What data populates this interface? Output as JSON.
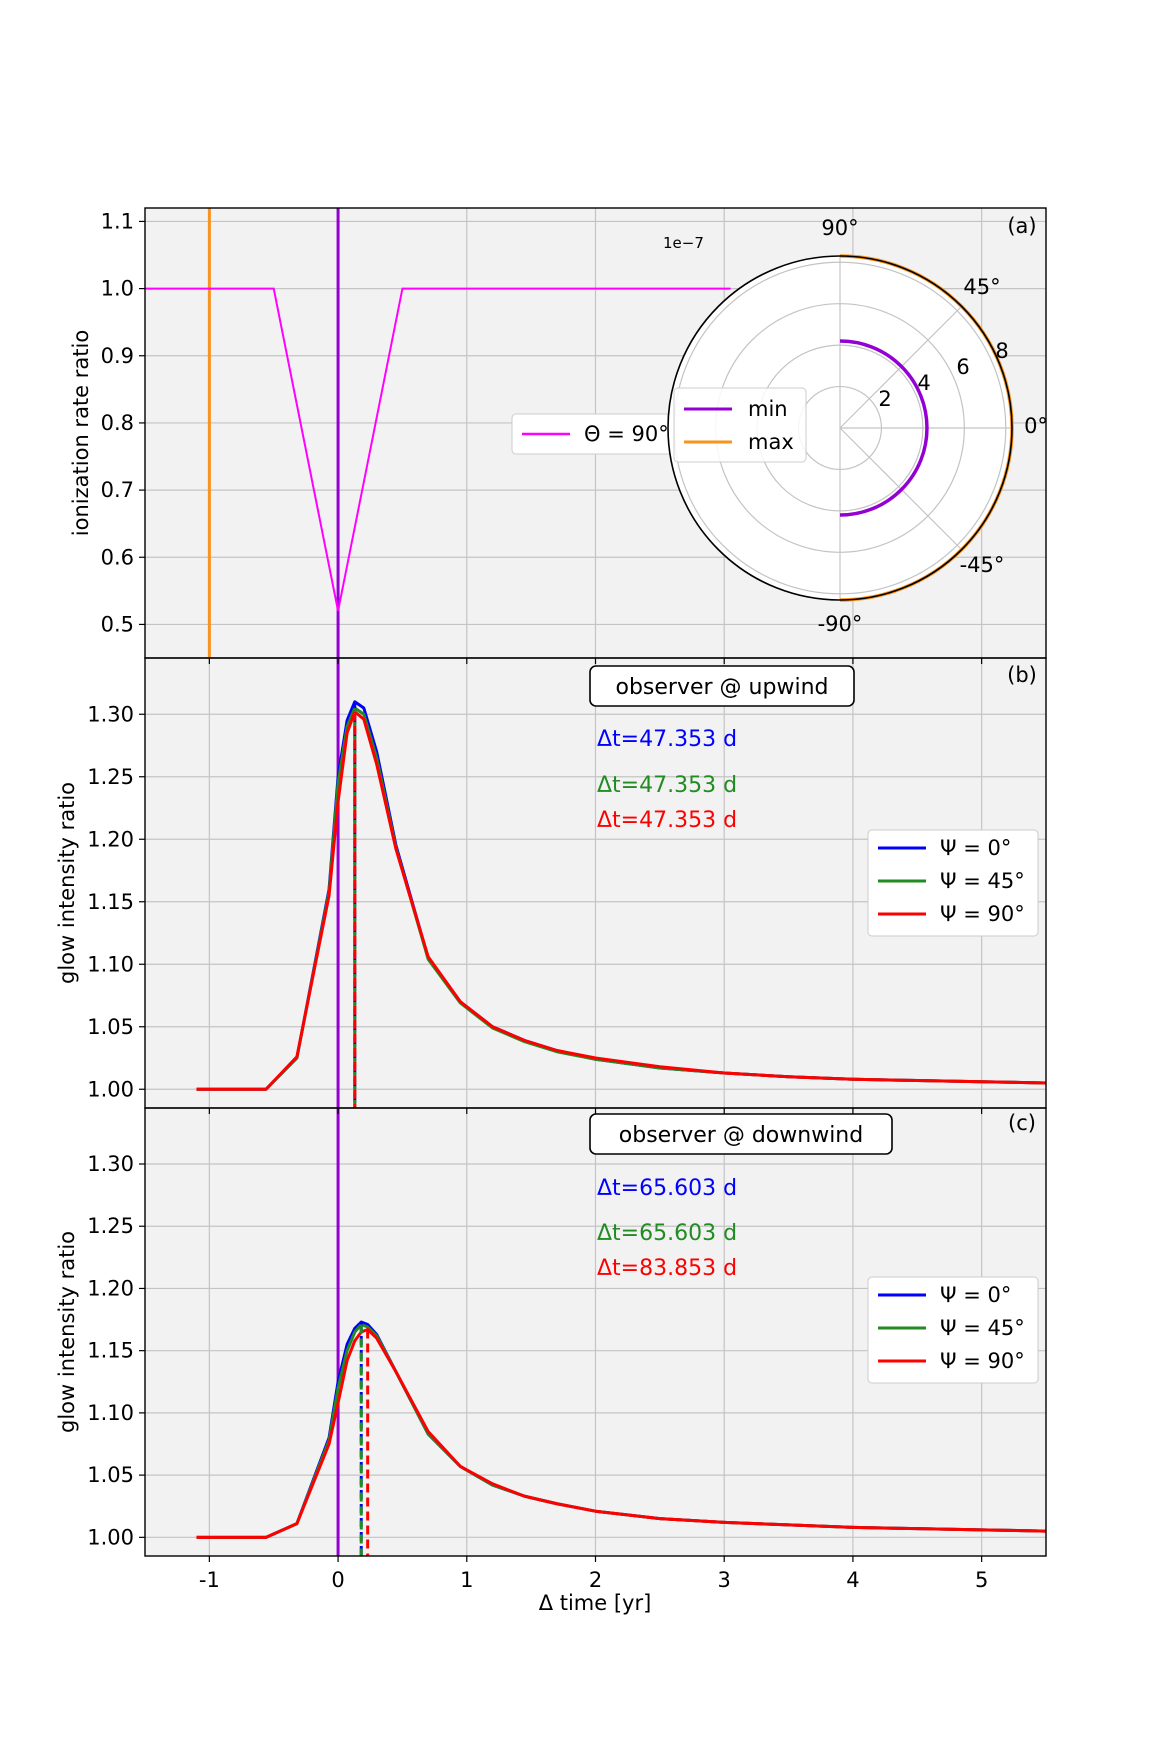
{
  "colors": {
    "panel_bg": "#f2f2f2",
    "grid": "#c4c4c4",
    "min": "#9400d3",
    "max": "#f7931e",
    "theta": "#ff00ff",
    "psi0": "#0000ff",
    "psi45": "#228b22",
    "psi90": "#ff0000"
  },
  "xaxis": {
    "label": "Δ time [yr]",
    "range": [
      -1.5,
      5.5
    ],
    "ticks": [
      -1,
      0,
      1,
      2,
      3,
      4,
      5
    ],
    "tick_labels": [
      "-1",
      "0",
      "1",
      "2",
      "3",
      "4",
      "5"
    ]
  },
  "chart_data": [
    {
      "panel": "(a)",
      "type": "line",
      "ylabel": "ionization rate ratio",
      "ylim": [
        0.45,
        1.12
      ],
      "yticks": [
        0.5,
        0.6,
        0.7,
        0.8,
        0.9,
        1.0,
        1.1
      ],
      "ytick_labels": [
        "0.5",
        "0.6",
        "0.7",
        "0.8",
        "0.9",
        "1.0",
        "1.1"
      ],
      "series": [
        {
          "name": "Θ = 90°",
          "x": [
            -1.5,
            -0.5,
            0.0,
            0.5,
            3.05
          ],
          "y": [
            1.0,
            1.0,
            0.52,
            1.0,
            1.0
          ]
        }
      ],
      "vlines": [
        {
          "name": "max",
          "x": -1.0
        },
        {
          "name": "min",
          "x": 0.0
        }
      ],
      "legend": {
        "entry": "Θ = 90°",
        "placement": "center-right"
      },
      "inset_polar": {
        "scale_label": "1e−7",
        "theta_labels": [
          "90°",
          "45°",
          "0°",
          "-45°",
          "-90°"
        ],
        "r_ticks": [
          2,
          4,
          6,
          8
        ],
        "r_tick_labels": [
          "2",
          "4",
          "6",
          "8"
        ],
        "rmax": 8.3,
        "series": [
          {
            "name": "min",
            "r": 4.2,
            "theta_range": [
              -90,
              90
            ]
          },
          {
            "name": "max",
            "r": 8.3,
            "theta_range": [
              -90,
              90
            ]
          }
        ],
        "legend": [
          "min",
          "max"
        ]
      }
    },
    {
      "panel": "(b)",
      "type": "line",
      "title_box": "observer @ upwind",
      "ylabel": "glow intensity ratio",
      "ylim": [
        0.985,
        1.345
      ],
      "yticks": [
        1.0,
        1.05,
        1.1,
        1.15,
        1.2,
        1.25,
        1.3
      ],
      "ytick_labels": [
        "1.00",
        "1.05",
        "1.10",
        "1.15",
        "1.20",
        "1.25",
        "1.30"
      ],
      "annotations": [
        "Δt=47.353 d",
        "Δt=47.353 d",
        "Δt=47.353 d"
      ],
      "x": [
        -1.1,
        -0.56,
        -0.32,
        -0.07,
        0.0,
        0.07,
        0.13,
        0.2,
        0.3,
        0.45,
        0.7,
        0.95,
        1.2,
        1.45,
        1.7,
        2.0,
        2.5,
        3.0,
        3.5,
        4.0,
        4.5,
        5.0,
        5.5
      ],
      "series": [
        {
          "name": "Ψ = 0°",
          "y": [
            1.0,
            1.0,
            1.025,
            1.16,
            1.25,
            1.295,
            1.31,
            1.305,
            1.27,
            1.195,
            1.105,
            1.07,
            1.05,
            1.039,
            1.031,
            1.024,
            1.017,
            1.013,
            1.01,
            1.008,
            1.007,
            1.006,
            1.005
          ]
        },
        {
          "name": "Ψ = 45°",
          "y": [
            1.0,
            1.0,
            1.025,
            1.158,
            1.245,
            1.29,
            1.305,
            1.3,
            1.265,
            1.193,
            1.104,
            1.069,
            1.049,
            1.038,
            1.03,
            1.024,
            1.017,
            1.013,
            1.01,
            1.008,
            1.007,
            1.006,
            1.005
          ]
        },
        {
          "name": "Ψ = 90°",
          "y": [
            1.0,
            1.0,
            1.026,
            1.155,
            1.23,
            1.285,
            1.302,
            1.296,
            1.26,
            1.192,
            1.106,
            1.07,
            1.05,
            1.039,
            1.031,
            1.025,
            1.018,
            1.013,
            1.01,
            1.008,
            1.007,
            1.006,
            1.005
          ]
        }
      ],
      "vlines": [
        {
          "name": "min",
          "x": 0.0
        },
        {
          "name": "Ψ = 0°",
          "x": 0.13
        },
        {
          "name": "Ψ = 45°",
          "x": 0.13
        },
        {
          "name": "Ψ = 90°",
          "x": 0.13
        }
      ],
      "legend": {
        "entries": [
          "Ψ = 0°",
          "Ψ = 45°",
          "Ψ = 90°"
        ],
        "placement": "center-right"
      }
    },
    {
      "panel": "(c)",
      "type": "line",
      "title_box": "observer @ downwind",
      "ylabel": "glow intensity ratio",
      "ylim": [
        0.985,
        1.345
      ],
      "yticks": [
        1.0,
        1.05,
        1.1,
        1.15,
        1.2,
        1.25,
        1.3
      ],
      "ytick_labels": [
        "1.00",
        "1.05",
        "1.10",
        "1.15",
        "1.20",
        "1.25",
        "1.30"
      ],
      "annotations": [
        "Δt=65.603 d",
        "Δt=65.603 d",
        "Δt=83.853 d"
      ],
      "x": [
        -1.1,
        -0.56,
        -0.32,
        -0.07,
        0.0,
        0.07,
        0.13,
        0.18,
        0.23,
        0.3,
        0.45,
        0.7,
        0.95,
        1.2,
        1.45,
        1.7,
        2.0,
        2.5,
        3.0,
        3.5,
        4.0,
        4.5,
        5.0,
        5.5
      ],
      "series": [
        {
          "name": "Ψ = 0°",
          "y": [
            1.0,
            1.0,
            1.011,
            1.08,
            1.125,
            1.155,
            1.168,
            1.173,
            1.171,
            1.163,
            1.133,
            1.083,
            1.057,
            1.042,
            1.033,
            1.027,
            1.021,
            1.015,
            1.012,
            1.01,
            1.008,
            1.007,
            1.006,
            1.005
          ]
        },
        {
          "name": "Ψ = 45°",
          "y": [
            1.0,
            1.0,
            1.011,
            1.078,
            1.12,
            1.15,
            1.165,
            1.171,
            1.169,
            1.162,
            1.133,
            1.083,
            1.057,
            1.042,
            1.033,
            1.027,
            1.021,
            1.015,
            1.012,
            1.01,
            1.008,
            1.007,
            1.006,
            1.005
          ]
        },
        {
          "name": "Ψ = 90°",
          "y": [
            1.0,
            1.0,
            1.011,
            1.075,
            1.108,
            1.142,
            1.158,
            1.165,
            1.167,
            1.16,
            1.133,
            1.085,
            1.057,
            1.043,
            1.033,
            1.027,
            1.021,
            1.015,
            1.012,
            1.01,
            1.008,
            1.007,
            1.006,
            1.005
          ]
        }
      ],
      "vlines": [
        {
          "name": "min",
          "x": 0.0
        },
        {
          "name": "Ψ = 0°",
          "x": 0.18
        },
        {
          "name": "Ψ = 45°",
          "x": 0.18
        },
        {
          "name": "Ψ = 90°",
          "x": 0.23
        }
      ],
      "legend": {
        "entries": [
          "Ψ = 0°",
          "Ψ = 45°",
          "Ψ = 90°"
        ],
        "placement": "center-right"
      }
    }
  ]
}
